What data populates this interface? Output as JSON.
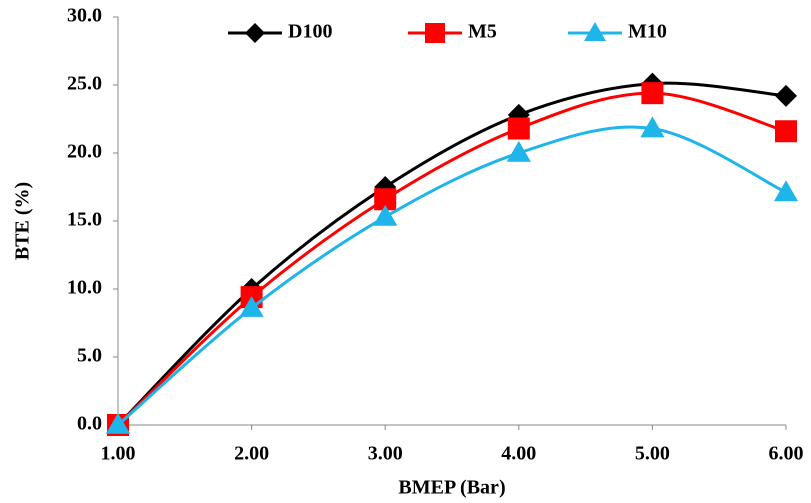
{
  "chart_data": {
    "type": "line",
    "x_label": "BMEP (Bar)",
    "y_label": "BTE (%)",
    "x": [
      1,
      2,
      3,
      4,
      5,
      6
    ],
    "series": [
      {
        "name": "D100",
        "color": "#000000",
        "marker": "diamond",
        "values": [
          0,
          10.0,
          17.5,
          22.8,
          25.1,
          24.2
        ]
      },
      {
        "name": "M5",
        "color": "#ff0000",
        "marker": "square",
        "values": [
          0,
          9.4,
          16.6,
          21.8,
          24.4,
          21.6
        ]
      },
      {
        "name": "M10",
        "color": "#1fb4ea",
        "marker": "triangle",
        "values": [
          0,
          8.6,
          15.3,
          20.0,
          21.8,
          17.1
        ]
      }
    ],
    "xlim": [
      1,
      6
    ],
    "xticks": [
      {
        "value": 1,
        "label": "1.00"
      },
      {
        "value": 2,
        "label": "2.00"
      },
      {
        "value": 3,
        "label": "3.00"
      },
      {
        "value": 4,
        "label": "4.00"
      },
      {
        "value": 5,
        "label": "5.00"
      },
      {
        "value": 6,
        "label": "6.00"
      }
    ],
    "ylim": [
      0,
      30
    ],
    "yticks": [
      {
        "value": 0,
        "label": "0.0"
      },
      {
        "value": 5,
        "label": "5.0"
      },
      {
        "value": 10,
        "label": "10.0"
      },
      {
        "value": 15,
        "label": "15.0"
      },
      {
        "value": 20,
        "label": "20.0"
      },
      {
        "value": 25,
        "label": "25.0"
      },
      {
        "value": 30,
        "label": "30.0"
      }
    ],
    "grid": false,
    "smooth": true,
    "legend": "top"
  }
}
